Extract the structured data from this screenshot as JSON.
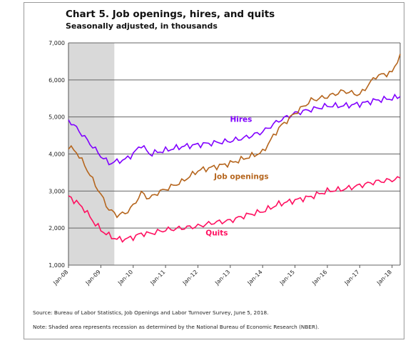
{
  "title": "Chart 5. Job openings, hires, and quits",
  "subtitle": "Seasonally adjusted, in thousands",
  "source": "Source: Bureau of Labor Statistics, Job Openings and Labor Turnover Survey, June 5, 2018.",
  "note": "Note: Shaded area represents recession as determined by the National Bureau of Economic Research (NBER).",
  "colors": {
    "hires": "#8000ff",
    "job_openings": "#b5651d",
    "quits": "#ff1060",
    "recession": "#d9d9d9",
    "grid": "#666666"
  },
  "chart_data": {
    "type": "line",
    "title": "Chart 5. Job openings, hires, and quits",
    "subtitle": "Seasonally adjusted, in thousands",
    "xlabel": "",
    "ylabel": "",
    "x_range": [
      "2008-01",
      "2018-04"
    ],
    "ylim": [
      1000,
      7000
    ],
    "yticks": [
      1000,
      2000,
      3000,
      4000,
      5000,
      6000,
      7000
    ],
    "ytick_labels": [
      "1,000",
      "2,000",
      "3,000",
      "4,000",
      "5,000",
      "6,000",
      "7,000"
    ],
    "xticks": [
      "2008-01",
      "2009-01",
      "2010-01",
      "2011-01",
      "2012-01",
      "2013-01",
      "2014-01",
      "2015-01",
      "2016-01",
      "2017-01",
      "2018-01"
    ],
    "xtick_labels": [
      "Jan-08",
      "Jan-09",
      "Jan-10",
      "Jan-11",
      "Jan-12",
      "Jan-13",
      "Jan-14",
      "Jan-15",
      "Jan-16",
      "Jan-17",
      "Jan-18"
    ],
    "recession": {
      "start": "2008-01",
      "end": "2009-06"
    },
    "grid": true,
    "legend": "none; series labeled inline",
    "series": [
      {
        "name": "Hires",
        "color": "#8000ff",
        "points": [
          [
            "2008-01",
            4920
          ],
          [
            "2008-04",
            4700
          ],
          [
            "2008-07",
            4450
          ],
          [
            "2008-10",
            4200
          ],
          [
            "2009-01",
            3950
          ],
          [
            "2009-04",
            3750
          ],
          [
            "2009-07",
            3800
          ],
          [
            "2009-10",
            3850
          ],
          [
            "2010-01",
            4000
          ],
          [
            "2010-04",
            4250
          ],
          [
            "2010-07",
            4000
          ],
          [
            "2010-10",
            4050
          ],
          [
            "2011-01",
            4100
          ],
          [
            "2011-07",
            4200
          ],
          [
            "2012-01",
            4250
          ],
          [
            "2012-07",
            4300
          ],
          [
            "2013-01",
            4350
          ],
          [
            "2013-07",
            4450
          ],
          [
            "2014-01",
            4600
          ],
          [
            "2014-07",
            4900
          ],
          [
            "2015-01",
            5100
          ],
          [
            "2015-07",
            5200
          ],
          [
            "2016-01",
            5300
          ],
          [
            "2016-07",
            5300
          ],
          [
            "2017-01",
            5350
          ],
          [
            "2017-07",
            5450
          ],
          [
            "2018-01",
            5500
          ],
          [
            "2018-04",
            5550
          ]
        ]
      },
      {
        "name": "Job openings",
        "color": "#b5651d",
        "points": [
          [
            "2008-01",
            4200
          ],
          [
            "2008-04",
            4050
          ],
          [
            "2008-07",
            3700
          ],
          [
            "2008-10",
            3300
          ],
          [
            "2009-01",
            2900
          ],
          [
            "2009-04",
            2500
          ],
          [
            "2009-07",
            2350
          ],
          [
            "2009-10",
            2400
          ],
          [
            "2010-01",
            2600
          ],
          [
            "2010-04",
            2950
          ],
          [
            "2010-07",
            2800
          ],
          [
            "2010-10",
            2950
          ],
          [
            "2011-01",
            3050
          ],
          [
            "2011-07",
            3250
          ],
          [
            "2012-01",
            3550
          ],
          [
            "2012-07",
            3650
          ],
          [
            "2013-01",
            3750
          ],
          [
            "2013-07",
            3900
          ],
          [
            "2014-01",
            4050
          ],
          [
            "2014-07",
            4700
          ],
          [
            "2015-01",
            5100
          ],
          [
            "2015-07",
            5450
          ],
          [
            "2016-01",
            5550
          ],
          [
            "2016-07",
            5700
          ],
          [
            "2017-01",
            5600
          ],
          [
            "2017-07",
            6100
          ],
          [
            "2018-01",
            6200
          ],
          [
            "2018-04",
            6700
          ]
        ]
      },
      {
        "name": "Quits",
        "color": "#ff1060",
        "points": [
          [
            "2008-01",
            2850
          ],
          [
            "2008-04",
            2700
          ],
          [
            "2008-07",
            2500
          ],
          [
            "2008-10",
            2200
          ],
          [
            "2009-01",
            1950
          ],
          [
            "2009-04",
            1800
          ],
          [
            "2009-07",
            1700
          ],
          [
            "2009-10",
            1700
          ],
          [
            "2010-01",
            1750
          ],
          [
            "2010-04",
            1850
          ],
          [
            "2010-07",
            1850
          ],
          [
            "2010-10",
            1900
          ],
          [
            "2011-01",
            1950
          ],
          [
            "2011-07",
            2000
          ],
          [
            "2012-01",
            2050
          ],
          [
            "2012-07",
            2150
          ],
          [
            "2013-01",
            2200
          ],
          [
            "2013-07",
            2350
          ],
          [
            "2014-01",
            2450
          ],
          [
            "2014-07",
            2650
          ],
          [
            "2015-01",
            2750
          ],
          [
            "2015-07",
            2850
          ],
          [
            "2016-01",
            3000
          ],
          [
            "2016-07",
            3050
          ],
          [
            "2017-01",
            3150
          ],
          [
            "2017-07",
            3250
          ],
          [
            "2018-01",
            3300
          ],
          [
            "2018-04",
            3350
          ]
        ]
      }
    ]
  }
}
